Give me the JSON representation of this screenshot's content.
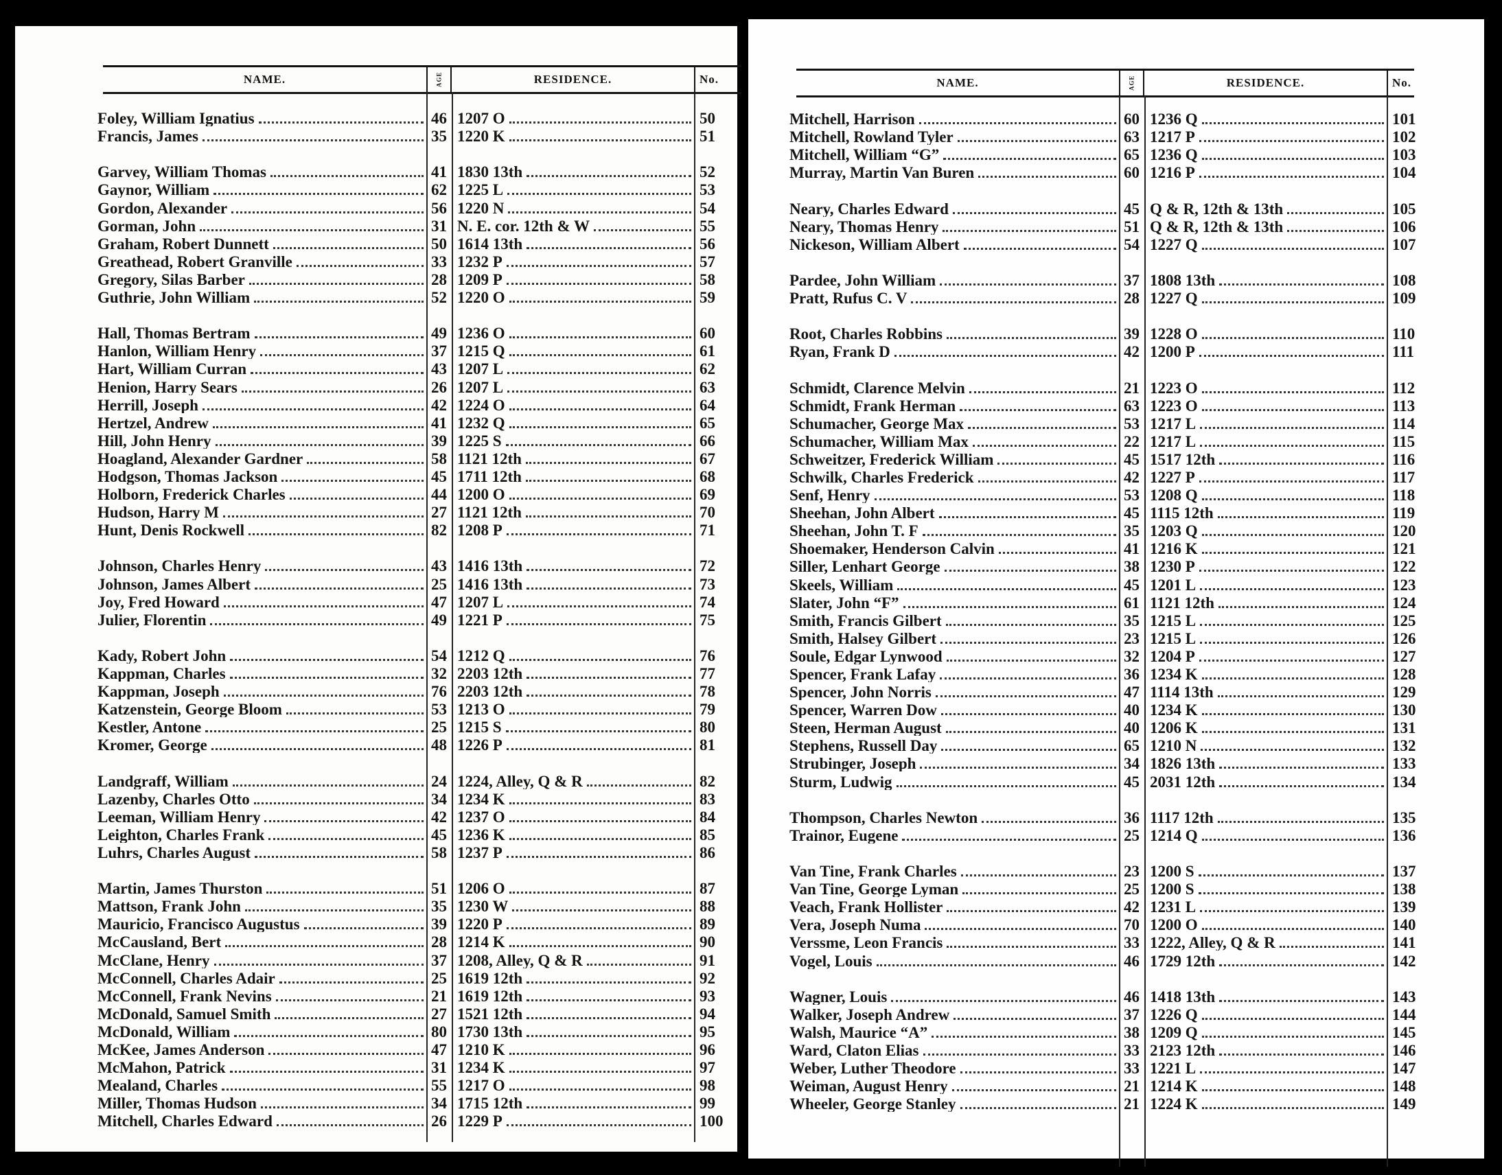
{
  "header": {
    "name": "NAME.",
    "age": "AGE",
    "residence": "RESIDENCE.",
    "no": "No."
  },
  "pages": [
    {
      "groups": [
        {
          "rows": [
            {
              "name": "Foley, William Ignatius",
              "age": "46",
              "res": "1207 O",
              "no": "50"
            },
            {
              "name": "Francis, James",
              "age": "35",
              "res": "1220 K",
              "no": "51"
            }
          ]
        },
        {
          "rows": [
            {
              "name": "Garvey, William Thomas",
              "age": "41",
              "res": "1830 13th",
              "no": "52"
            },
            {
              "name": "Gaynor, William",
              "age": "62",
              "res": "1225 L",
              "no": "53"
            },
            {
              "name": "Gordon, Alexander",
              "age": "56",
              "res": "1220 N",
              "no": "54"
            },
            {
              "name": "Gorman, John",
              "age": "31",
              "res": "N. E. cor. 12th & W",
              "no": "55"
            },
            {
              "name": "Graham, Robert Dunnett",
              "age": "50",
              "res": "1614 13th",
              "no": "56"
            },
            {
              "name": "Greathead, Robert Granville",
              "age": "33",
              "res": "1232 P",
              "no": "57"
            },
            {
              "name": "Gregory, Silas Barber",
              "age": "28",
              "res": "1209 P",
              "no": "58"
            },
            {
              "name": "Guthrie, John William",
              "age": "52",
              "res": "1220 O",
              "no": "59"
            }
          ]
        },
        {
          "rows": [
            {
              "name": "Hall, Thomas Bertram",
              "age": "49",
              "res": "1236 O",
              "no": "60"
            },
            {
              "name": "Hanlon, William Henry",
              "age": "37",
              "res": "1215 Q",
              "no": "61"
            },
            {
              "name": "Hart, William Curran",
              "age": "43",
              "res": "1207 L",
              "no": "62"
            },
            {
              "name": "Henion, Harry Sears",
              "age": "26",
              "res": "1207 L",
              "no": "63"
            },
            {
              "name": "Herrill, Joseph",
              "age": "42",
              "res": "1224 O",
              "no": "64"
            },
            {
              "name": "Hertzel, Andrew",
              "age": "41",
              "res": "1232 Q",
              "no": "65"
            },
            {
              "name": "Hill, John Henry",
              "age": "39",
              "res": "1225 S",
              "no": "66"
            },
            {
              "name": "Hoagland, Alexander Gardner",
              "age": "58",
              "res": "1121 12th",
              "no": "67"
            },
            {
              "name": "Hodgson, Thomas Jackson",
              "age": "45",
              "res": "1711 12th",
              "no": "68"
            },
            {
              "name": "Holborn, Frederick Charles",
              "age": "44",
              "res": "1200 O",
              "no": "69"
            },
            {
              "name": "Hudson, Harry M",
              "age": "27",
              "res": "1121 12th",
              "no": "70"
            },
            {
              "name": "Hunt, Denis Rockwell",
              "age": "82",
              "res": "1208 P",
              "no": "71"
            }
          ]
        },
        {
          "rows": [
            {
              "name": "Johnson, Charles Henry",
              "age": "43",
              "res": "1416 13th",
              "no": "72"
            },
            {
              "name": "Johnson, James Albert",
              "age": "25",
              "res": "1416 13th",
              "no": "73"
            },
            {
              "name": "Joy, Fred Howard",
              "age": "47",
              "res": "1207 L",
              "no": "74"
            },
            {
              "name": "Julier, Florentin",
              "age": "49",
              "res": "1221 P",
              "no": "75"
            }
          ]
        },
        {
          "rows": [
            {
              "name": "Kady, Robert John",
              "age": "54",
              "res": "1212 Q",
              "no": "76"
            },
            {
              "name": "Kappman, Charles",
              "age": "32",
              "res": "2203 12th",
              "no": "77"
            },
            {
              "name": "Kappman, Joseph",
              "age": "76",
              "res": "2203 12th",
              "no": "78"
            },
            {
              "name": "Katzenstein, George Bloom",
              "age": "53",
              "res": "1213 O",
              "no": "79"
            },
            {
              "name": "Kestler, Antone",
              "age": "25",
              "res": "1215 S",
              "no": "80"
            },
            {
              "name": "Kromer, George",
              "age": "48",
              "res": "1226 P",
              "no": "81"
            }
          ]
        },
        {
          "rows": [
            {
              "name": "Landgraff, William",
              "age": "24",
              "res": "1224, Alley, Q & R",
              "no": "82"
            },
            {
              "name": "Lazenby, Charles Otto",
              "age": "34",
              "res": "1234 K",
              "no": "83"
            },
            {
              "name": "Leeman, William Henry",
              "age": "42",
              "res": "1237 O",
              "no": "84"
            },
            {
              "name": "Leighton, Charles Frank",
              "age": "45",
              "res": "1236 K",
              "no": "85"
            },
            {
              "name": "Luhrs, Charles August",
              "age": "58",
              "res": "1237 P",
              "no": "86"
            }
          ]
        },
        {
          "rows": [
            {
              "name": "Martin, James Thurston",
              "age": "51",
              "res": "1206 O",
              "no": "87"
            },
            {
              "name": "Mattson, Frank John",
              "age": "35",
              "res": "1230 W",
              "no": "88"
            },
            {
              "name": "Mauricio, Francisco Augustus",
              "age": "39",
              "res": "1220 P",
              "no": "89"
            },
            {
              "name": "McCausland, Bert",
              "age": "28",
              "res": "1214 K",
              "no": "90"
            },
            {
              "name": "McClane, Henry",
              "age": "37",
              "res": "1208, Alley, Q & R",
              "no": "91"
            },
            {
              "name": "McConnell, Charles Adair",
              "age": "25",
              "res": "1619 12th",
              "no": "92"
            },
            {
              "name": "McConnell, Frank Nevins",
              "age": "21",
              "res": "1619 12th",
              "no": "93"
            },
            {
              "name": "McDonald, Samuel Smith",
              "age": "27",
              "res": "1521 12th",
              "no": "94"
            },
            {
              "name": "McDonald, William",
              "age": "80",
              "res": "1730 13th",
              "no": "95"
            },
            {
              "name": "McKee, James Anderson",
              "age": "47",
              "res": "1210 K",
              "no": "96"
            },
            {
              "name": "McMahon, Patrick",
              "age": "31",
              "res": "1234 K",
              "no": "97"
            },
            {
              "name": "Mealand, Charles",
              "age": "55",
              "res": "1217 O",
              "no": "98"
            },
            {
              "name": "Miller, Thomas Hudson",
              "age": "34",
              "res": "1715 12th",
              "no": "99"
            },
            {
              "name": "Mitchell, Charles Edward",
              "age": "26",
              "res": "1229 P",
              "no": "100"
            }
          ]
        }
      ]
    },
    {
      "groups": [
        {
          "rows": [
            {
              "name": "Mitchell, Harrison",
              "age": "60",
              "res": "1236 Q",
              "no": "101"
            },
            {
              "name": "Mitchell, Rowland Tyler",
              "age": "63",
              "res": "1217 P",
              "no": "102"
            },
            {
              "name": "Mitchell, William “G”",
              "age": "65",
              "res": "1236 Q",
              "no": "103"
            },
            {
              "name": "Murray, Martin Van Buren",
              "age": "60",
              "res": "1216 P",
              "no": "104"
            }
          ]
        },
        {
          "rows": [
            {
              "name": "Neary, Charles Edward",
              "age": "45",
              "res": "Q & R, 12th & 13th",
              "no": "105"
            },
            {
              "name": "Neary, Thomas Henry",
              "age": "51",
              "res": "Q & R, 12th & 13th",
              "no": "106"
            },
            {
              "name": "Nickeson, William Albert",
              "age": "54",
              "res": "1227 Q",
              "no": "107"
            }
          ]
        },
        {
          "rows": [
            {
              "name": "Pardee, John William",
              "age": "37",
              "res": "1808 13th",
              "no": "108"
            },
            {
              "name": "Pratt, Rufus C. V",
              "age": "28",
              "res": "1227 Q",
              "no": "109"
            }
          ]
        },
        {
          "rows": [
            {
              "name": "Root, Charles Robbins",
              "age": "39",
              "res": "1228 O",
              "no": "110"
            },
            {
              "name": "Ryan, Frank D",
              "age": "42",
              "res": "1200 P",
              "no": "111"
            }
          ]
        },
        {
          "rows": [
            {
              "name": "Schmidt, Clarence Melvin",
              "age": "21",
              "res": "1223 O",
              "no": "112"
            },
            {
              "name": "Schmidt, Frank Herman",
              "age": "63",
              "res": "1223 O",
              "no": "113"
            },
            {
              "name": "Schumacher, George Max",
              "age": "53",
              "res": "1217 L",
              "no": "114"
            },
            {
              "name": "Schumacher, William Max",
              "age": "22",
              "res": "1217 L",
              "no": "115"
            },
            {
              "name": "Schweitzer, Frederick William",
              "age": "45",
              "res": "1517 12th",
              "no": "116"
            },
            {
              "name": "Schwilk, Charles Frederick",
              "age": "42",
              "res": "1227 P",
              "no": "117"
            },
            {
              "name": "Senf, Henry",
              "age": "53",
              "res": "1208 Q",
              "no": "118"
            },
            {
              "name": "Sheehan, John Albert",
              "age": "45",
              "res": "1115 12th",
              "no": "119"
            },
            {
              "name": "Sheehan, John T. F",
              "age": "35",
              "res": "1203 Q",
              "no": "120"
            },
            {
              "name": "Shoemaker, Henderson Calvin",
              "age": "41",
              "res": "1216 K",
              "no": "121"
            },
            {
              "name": "Siller, Lenhart George",
              "age": "38",
              "res": "1230 P",
              "no": "122"
            },
            {
              "name": "Skeels, William",
              "age": "45",
              "res": "1201 L",
              "no": "123"
            },
            {
              "name": "Slater, John “F”",
              "age": "61",
              "res": "1121 12th",
              "no": "124"
            },
            {
              "name": "Smith, Francis Gilbert",
              "age": "35",
              "res": "1215 L",
              "no": "125"
            },
            {
              "name": "Smith, Halsey Gilbert",
              "age": "23",
              "res": "1215 L",
              "no": "126"
            },
            {
              "name": "Soule, Edgar Lynwood",
              "age": "32",
              "res": "1204 P",
              "no": "127"
            },
            {
              "name": "Spencer, Frank Lafay",
              "age": "36",
              "res": "1234 K",
              "no": "128"
            },
            {
              "name": "Spencer, John Norris",
              "age": "47",
              "res": "1114 13th",
              "no": "129"
            },
            {
              "name": "Spencer, Warren Dow",
              "age": "40",
              "res": "1234 K",
              "no": "130"
            },
            {
              "name": "Steen, Herman August",
              "age": "40",
              "res": "1206 K",
              "no": "131"
            },
            {
              "name": "Stephens, Russell Day",
              "age": "65",
              "res": "1210 N",
              "no": "132"
            },
            {
              "name": "Strubinger, Joseph",
              "age": "34",
              "res": "1826 13th",
              "no": "133"
            },
            {
              "name": "Sturm, Ludwig",
              "age": "45",
              "res": "2031 12th",
              "no": "134"
            }
          ]
        },
        {
          "rows": [
            {
              "name": "Thompson, Charles Newton",
              "age": "36",
              "res": "1117 12th",
              "no": "135"
            },
            {
              "name": "Trainor, Eugene",
              "age": "25",
              "res": "1214 Q",
              "no": "136"
            }
          ]
        },
        {
          "rows": [
            {
              "name": "Van Tine, Frank Charles",
              "age": "23",
              "res": "1200 S",
              "no": "137"
            },
            {
              "name": "Van Tine, George Lyman",
              "age": "25",
              "res": "1200 S",
              "no": "138"
            },
            {
              "name": "Veach, Frank Hollister",
              "age": "42",
              "res": "1231 L",
              "no": "139"
            },
            {
              "name": "Vera, Joseph Numa",
              "age": "70",
              "res": "1200 O",
              "no": "140"
            },
            {
              "name": "Verssme, Leon Francis",
              "age": "33",
              "res": "1222, Alley, Q & R",
              "no": "141"
            },
            {
              "name": "Vogel, Louis",
              "age": "46",
              "res": "1729 12th",
              "no": "142"
            }
          ]
        },
        {
          "rows": [
            {
              "name": "Wagner, Louis",
              "age": "46",
              "res": "1418 13th",
              "no": "143"
            },
            {
              "name": "Walker, Joseph Andrew",
              "age": "37",
              "res": "1226 Q",
              "no": "144"
            },
            {
              "name": "Walsh, Maurice “A”",
              "age": "38",
              "res": "1209 Q",
              "no": "145"
            },
            {
              "name": "Ward, Claton Elias",
              "age": "33",
              "res": "2123 12th",
              "no": "146"
            },
            {
              "name": "Weber, Luther Theodore",
              "age": "33",
              "res": "1221 L",
              "no": "147"
            },
            {
              "name": "Weiman, August Henry",
              "age": "21",
              "res": "1214 K",
              "no": "148"
            },
            {
              "name": "Wheeler, George Stanley",
              "age": "21",
              "res": "1224 K",
              "no": "149"
            }
          ]
        }
      ]
    }
  ]
}
